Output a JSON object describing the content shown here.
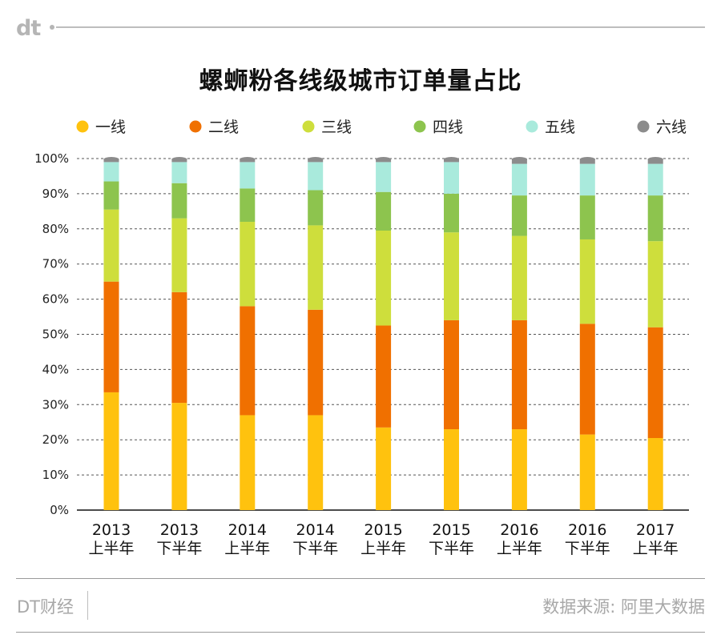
{
  "brand": "dt",
  "footer": {
    "left": "DT财经",
    "right": "数据来源: 阿里大数据"
  },
  "colors": {
    "一线": "#ffc20e",
    "二线": "#f07000",
    "三线": "#cede3c",
    "四线": "#8dc44e",
    "五线": "#a9eadc",
    "六线": "#8c8c8c"
  },
  "chart_data": {
    "type": "bar",
    "stacked": true,
    "title": "螺蛳粉各线级城市订单量占比",
    "categories": [
      [
        "2013",
        "上半年"
      ],
      [
        "2013",
        "下半年"
      ],
      [
        "2014",
        "上半年"
      ],
      [
        "2014",
        "下半年"
      ],
      [
        "2015",
        "上半年"
      ],
      [
        "2015",
        "下半年"
      ],
      [
        "2016",
        "上半年"
      ],
      [
        "2016",
        "下半年"
      ],
      [
        "2017",
        "上半年"
      ]
    ],
    "ylim": [
      0,
      100
    ],
    "yticks": [
      "0%",
      "10%",
      "20%",
      "30%",
      "40%",
      "50%",
      "60%",
      "70%",
      "80%",
      "90%",
      "100%"
    ],
    "legend_position": "top",
    "series": [
      {
        "name": "一线",
        "values": [
          33.5,
          30.5,
          27,
          27,
          23.5,
          23,
          23,
          21.5,
          20.5
        ]
      },
      {
        "name": "二线",
        "values": [
          31.5,
          31.5,
          31,
          30,
          29,
          31,
          31,
          31.5,
          31.5
        ]
      },
      {
        "name": "三线",
        "values": [
          20.5,
          21,
          24,
          24,
          27,
          25,
          24,
          24,
          24.5
        ]
      },
      {
        "name": "四线",
        "values": [
          8,
          10,
          9.5,
          10,
          11,
          11,
          11.5,
          12.5,
          13
        ]
      },
      {
        "name": "五线",
        "values": [
          5.5,
          6,
          7.5,
          8,
          8.5,
          9,
          9,
          9,
          9
        ]
      },
      {
        "name": "六线",
        "values": [
          1,
          1,
          1,
          1,
          1,
          1,
          1.5,
          1.5,
          1.5
        ]
      }
    ]
  }
}
